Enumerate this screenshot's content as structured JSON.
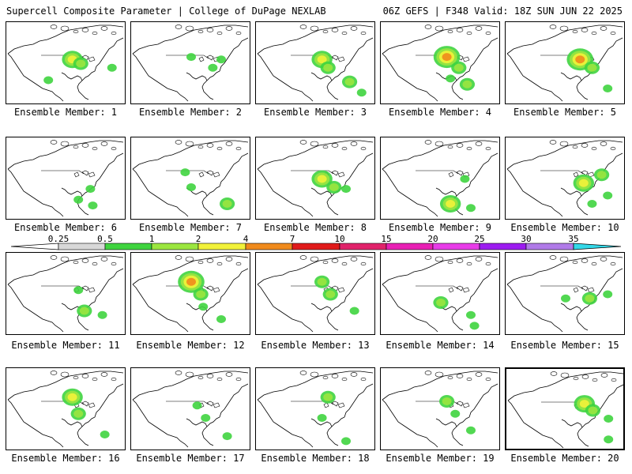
{
  "header": {
    "title_left": "Supercell Composite Parameter | College of DuPage NEXLAB",
    "title_right": "06Z GEFS | F348 Valid: 18Z SUN JUN 22 2025"
  },
  "colorbar": {
    "labels": [
      "0.25",
      "0.5",
      "1",
      "2",
      "4",
      "7",
      "10",
      "15",
      "20",
      "25",
      "30",
      "35"
    ],
    "colors": [
      "#d8d8d8",
      "#3fd43f",
      "#9be63f",
      "#f2f23a",
      "#f08a1c",
      "#e01a1a",
      "#e0226a",
      "#e820b4",
      "#e83ce8",
      "#9c1cf0",
      "#b07ae8",
      "#33d8e8"
    ]
  },
  "panels": [
    {
      "label": "Ensemble Member: 1",
      "blobs": [
        [
          0.55,
          0.45,
          3
        ],
        [
          0.62,
          0.5,
          2
        ],
        [
          0.88,
          0.55,
          1
        ],
        [
          0.35,
          0.7,
          1
        ]
      ]
    },
    {
      "label": "Ensemble Member: 2",
      "blobs": [
        [
          0.5,
          0.42,
          1
        ],
        [
          0.68,
          0.55,
          1
        ],
        [
          0.75,
          0.45,
          1
        ]
      ]
    },
    {
      "label": "Ensemble Member: 3",
      "blobs": [
        [
          0.55,
          0.45,
          3
        ],
        [
          0.6,
          0.55,
          2
        ],
        [
          0.78,
          0.72,
          2
        ],
        [
          0.88,
          0.85,
          1
        ]
      ]
    },
    {
      "label": "Ensemble Member: 4",
      "blobs": [
        [
          0.55,
          0.42,
          4
        ],
        [
          0.65,
          0.55,
          2
        ],
        [
          0.72,
          0.75,
          2
        ],
        [
          0.58,
          0.68,
          1
        ]
      ]
    },
    {
      "label": "Ensemble Member: 5",
      "blobs": [
        [
          0.62,
          0.45,
          4
        ],
        [
          0.72,
          0.55,
          2
        ],
        [
          0.85,
          0.8,
          1
        ]
      ]
    },
    {
      "label": "Ensemble Member: 6",
      "blobs": [
        [
          0.7,
          0.62,
          1
        ],
        [
          0.72,
          0.82,
          1
        ],
        [
          0.6,
          0.75,
          1
        ]
      ]
    },
    {
      "label": "Ensemble Member: 7",
      "blobs": [
        [
          0.45,
          0.42,
          1
        ],
        [
          0.8,
          0.8,
          2
        ],
        [
          0.5,
          0.6,
          1
        ]
      ]
    },
    {
      "label": "Ensemble Member: 8",
      "blobs": [
        [
          0.55,
          0.5,
          3
        ],
        [
          0.65,
          0.6,
          2
        ],
        [
          0.75,
          0.62,
          1
        ]
      ]
    },
    {
      "label": "Ensemble Member: 9",
      "blobs": [
        [
          0.58,
          0.8,
          3
        ],
        [
          0.7,
          0.5,
          1
        ],
        [
          0.75,
          0.85,
          1
        ]
      ]
    },
    {
      "label": "Ensemble Member: 10",
      "blobs": [
        [
          0.65,
          0.55,
          3
        ],
        [
          0.8,
          0.45,
          2
        ],
        [
          0.85,
          0.7,
          1
        ],
        [
          0.72,
          0.8,
          1
        ]
      ]
    },
    {
      "label": "Ensemble Member: 11",
      "blobs": [
        [
          0.6,
          0.45,
          1
        ],
        [
          0.65,
          0.7,
          2
        ],
        [
          0.8,
          0.75,
          1
        ]
      ]
    },
    {
      "label": "Ensemble Member: 12",
      "blobs": [
        [
          0.5,
          0.35,
          4
        ],
        [
          0.58,
          0.5,
          2
        ],
        [
          0.6,
          0.65,
          1
        ],
        [
          0.75,
          0.8,
          1
        ]
      ]
    },
    {
      "label": "Ensemble Member: 13",
      "blobs": [
        [
          0.55,
          0.35,
          2
        ],
        [
          0.62,
          0.5,
          2
        ],
        [
          0.82,
          0.7,
          1
        ]
      ]
    },
    {
      "label": "Ensemble Member: 14",
      "blobs": [
        [
          0.5,
          0.6,
          2
        ],
        [
          0.75,
          0.75,
          1
        ],
        [
          0.78,
          0.88,
          1
        ]
      ]
    },
    {
      "label": "Ensemble Member: 15",
      "blobs": [
        [
          0.5,
          0.55,
          1
        ],
        [
          0.7,
          0.55,
          2
        ],
        [
          0.85,
          0.5,
          1
        ]
      ]
    },
    {
      "label": "Ensemble Member: 16",
      "blobs": [
        [
          0.55,
          0.35,
          3
        ],
        [
          0.6,
          0.55,
          2
        ],
        [
          0.82,
          0.8,
          1
        ]
      ]
    },
    {
      "label": "Ensemble Member: 17",
      "blobs": [
        [
          0.55,
          0.45,
          1
        ],
        [
          0.62,
          0.6,
          1
        ],
        [
          0.8,
          0.82,
          1
        ]
      ]
    },
    {
      "label": "Ensemble Member: 18",
      "blobs": [
        [
          0.6,
          0.35,
          2
        ],
        [
          0.55,
          0.6,
          1
        ],
        [
          0.75,
          0.88,
          1
        ]
      ]
    },
    {
      "label": "Ensemble Member: 19",
      "blobs": [
        [
          0.55,
          0.4,
          2
        ],
        [
          0.62,
          0.55,
          1
        ],
        [
          0.75,
          0.75,
          1
        ]
      ]
    },
    {
      "label": "Ensemble Member: 20",
      "blobs": [
        [
          0.65,
          0.42,
          3
        ],
        [
          0.72,
          0.5,
          2
        ],
        [
          0.85,
          0.6,
          1
        ],
        [
          0.85,
          0.85,
          1
        ]
      ]
    }
  ]
}
